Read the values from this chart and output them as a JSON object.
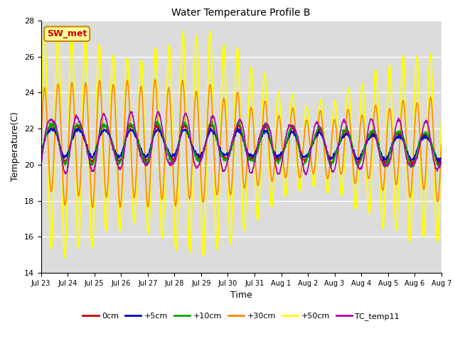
{
  "title": "Water Temperature Profile B",
  "xlabel": "Time",
  "ylabel": "Temperature(C)",
  "ylim": [
    14,
    28
  ],
  "yticks": [
    14,
    16,
    18,
    20,
    22,
    24,
    26,
    28
  ],
  "background_color": "#dcdcdc",
  "series": [
    {
      "label": "0cm",
      "color": "#cc0000"
    },
    {
      "label": "+5cm",
      "color": "#0000cc"
    },
    {
      "label": "+10cm",
      "color": "#00aa00"
    },
    {
      "label": "+30cm",
      "color": "#ff8800"
    },
    {
      "label": "+50cm",
      "color": "#ffff00"
    },
    {
      "label": "TC_temp11",
      "color": "#aa00aa"
    }
  ],
  "annotation_text": "SW_met",
  "annotation_color": "#cc0000",
  "annotation_bg": "#ffff99",
  "annotation_border": "#cc8800",
  "n_days": 15,
  "samples_per_day": 96,
  "tick_labels": [
    "Jul 23",
    "Jul 24",
    "Jul 25",
    "Jul 26",
    "Jul 27",
    "Jul 28",
    "Jul 29",
    "Jul 30",
    "Jul 31",
    "Aug 1",
    "Aug 2",
    "Aug 3",
    "Aug 4",
    "Aug 5",
    "Aug 6",
    "Aug 7"
  ]
}
